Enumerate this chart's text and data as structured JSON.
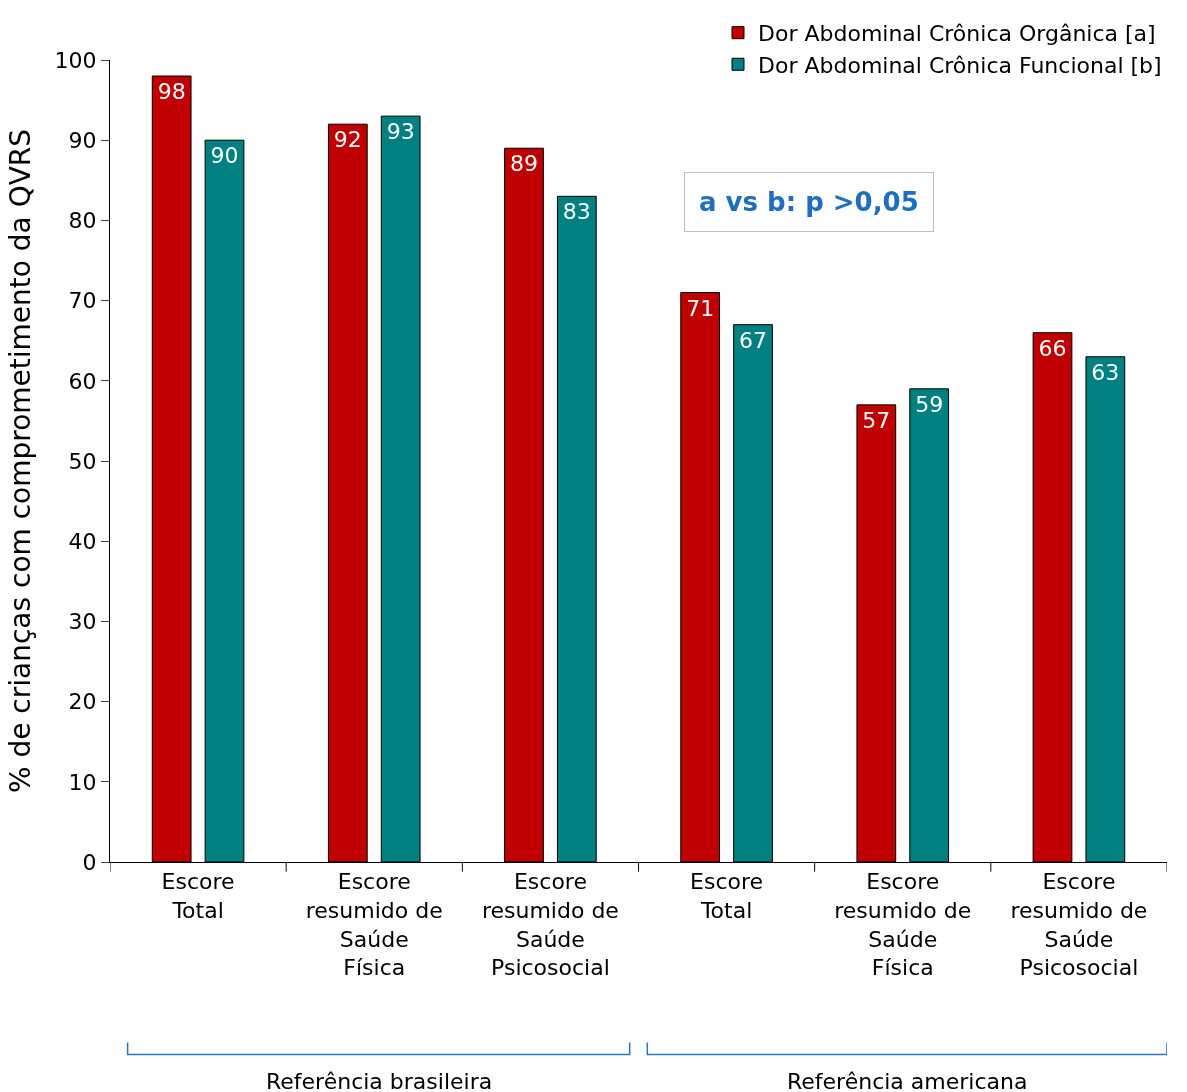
{
  "chart_data": {
    "type": "bar",
    "ylabel": "% de crianças com comprometimento da QVRS",
    "categories": [
      "Escore Total",
      "Escore resumido de Saúde Física",
      "Escore resumido de Saúde Psicosocial",
      "Escore Total",
      "Escore resumido de Saúde Física",
      "Escore resumido de Saúde Psicosocial"
    ],
    "series": [
      {
        "name": "Dor Abdominal Crônica Orgânica [a]",
        "color": "#c00000",
        "values": [
          98,
          92,
          89,
          71,
          57,
          66
        ]
      },
      {
        "name": "Dor Abdominal Crônica Funcional [b]",
        "color": "#008080",
        "values": [
          90,
          93,
          83,
          67,
          59,
          63
        ]
      }
    ],
    "ylim": [
      0,
      100
    ],
    "yticks": [
      0,
      10,
      20,
      30,
      40,
      50,
      60,
      70,
      80,
      90,
      100
    ],
    "legend": "top right",
    "data_labels": true,
    "annotations": [
      "a vs b: p >0,05",
      "Referência brasileira",
      "Referência americana"
    ]
  }
}
